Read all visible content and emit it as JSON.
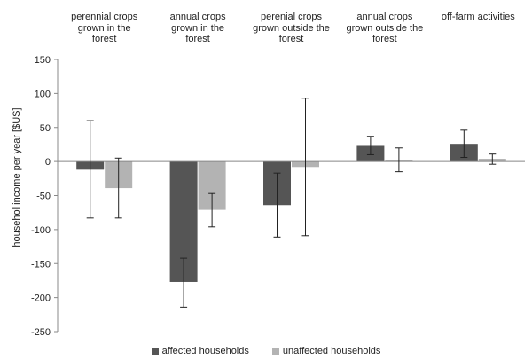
{
  "chart_data": {
    "type": "bar",
    "categories": [
      "perennial crops grown in the forest",
      "annual crops grown in the forest",
      "perenial crops grown outside the forest",
      "annual crops grown outside the forest",
      "off-farm activities"
    ],
    "category_lines": [
      [
        "perennial crops",
        "grown in the",
        "forest"
      ],
      [
        "annual crops",
        "grown in the",
        "forest"
      ],
      [
        "perenial crops",
        "grown outside the",
        "forest"
      ],
      [
        "annual crops",
        "grown outside the",
        "forest"
      ],
      [
        "off-farm activities"
      ]
    ],
    "series": [
      {
        "name": "affected households",
        "color": "#555555",
        "values": [
          -12,
          -177,
          -64,
          23,
          26
        ],
        "error_low": [
          -83,
          -214,
          -111,
          10,
          6
        ],
        "error_high": [
          60,
          -142,
          -17,
          37,
          46
        ]
      },
      {
        "name": "unaffected households",
        "color": "#b3b3b3",
        "values": [
          -39,
          -71,
          -8,
          2,
          4
        ],
        "error_low": [
          -83,
          -96,
          -109,
          -15,
          -4
        ],
        "error_high": [
          5,
          -47,
          93,
          20,
          11
        ]
      }
    ],
    "ylabel": "househol income per year [$US]",
    "ylim": [
      -250,
      150
    ],
    "yticks": [
      150,
      100,
      50,
      0,
      -50,
      -100,
      -150,
      -200,
      -250
    ],
    "grid": false,
    "legend_position": "bottom"
  }
}
